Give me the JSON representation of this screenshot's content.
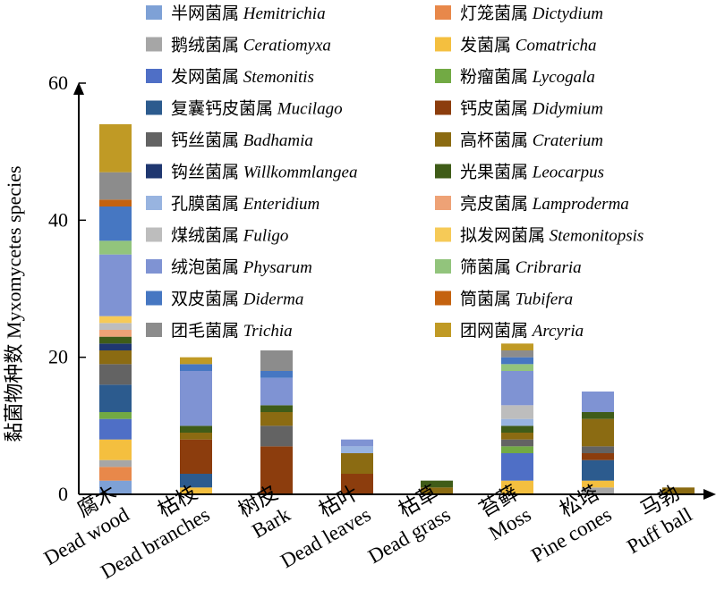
{
  "chart_data": {
    "type": "bar",
    "stacked": true,
    "ylabel": "黏菌物种数 Myxomycetes species",
    "xlabel": "",
    "ylim": [
      0,
      60
    ],
    "yticks": [
      0,
      20,
      40,
      60
    ],
    "grid": false,
    "legend_position": "top",
    "categories": [
      {
        "cn": "腐木",
        "en": "Dead wood"
      },
      {
        "cn": "枯枝",
        "en": "Dead branches"
      },
      {
        "cn": "树皮",
        "en": "Bark"
      },
      {
        "cn": "枯叶",
        "en": "Dead leaves"
      },
      {
        "cn": "枯草",
        "en": "Dead grass"
      },
      {
        "cn": "苔藓",
        "en": "Moss"
      },
      {
        "cn": "松塔",
        "en": "Pine cones"
      },
      {
        "cn": "马勃",
        "en": "Puff ball"
      }
    ],
    "series": [
      {
        "cn": "半网菌属",
        "latin": "Hemitrichia",
        "color": "#7ea1d6",
        "values": [
          2,
          0,
          0,
          0,
          0,
          0,
          0,
          0
        ]
      },
      {
        "cn": "灯笼菌属",
        "latin": "Dictydium",
        "color": "#e8884a",
        "values": [
          2,
          0,
          0,
          0,
          0,
          0,
          0,
          0
        ]
      },
      {
        "cn": "鹅绒菌属",
        "latin": "Ceratiomyxa",
        "color": "#a6a6a6",
        "values": [
          1,
          0,
          0,
          0,
          0,
          0,
          1,
          0
        ]
      },
      {
        "cn": "发菌属",
        "latin": "Comatricha",
        "color": "#f4bf3f",
        "values": [
          3,
          1,
          0,
          0,
          0,
          2,
          1,
          0
        ]
      },
      {
        "cn": "发网菌属",
        "latin": "Stemonitis",
        "color": "#4f6fc6",
        "values": [
          3,
          0,
          0,
          0,
          0,
          4,
          0,
          0
        ]
      },
      {
        "cn": "粉瘤菌属",
        "latin": "Lycogala",
        "color": "#72aa44",
        "values": [
          1,
          0,
          0,
          0,
          0,
          1,
          0,
          0
        ]
      },
      {
        "cn": "复囊钙皮菌属",
        "latin": "Mucilago",
        "color": "#2c5b8e",
        "values": [
          4,
          2,
          0,
          0,
          0,
          0,
          3,
          0
        ]
      },
      {
        "cn": "钙皮菌属",
        "latin": "Didymium",
        "color": "#8c3d0d",
        "values": [
          0,
          5,
          7,
          3,
          0,
          0,
          1,
          0
        ]
      },
      {
        "cn": "钙丝菌属",
        "latin": "Badhamia",
        "color": "#636363",
        "values": [
          3,
          0,
          3,
          0,
          0,
          1,
          1,
          0
        ]
      },
      {
        "cn": "高杯菌属",
        "latin": "Craterium",
        "color": "#8b6b12",
        "values": [
          2,
          1,
          2,
          3,
          1,
          1,
          4,
          1
        ]
      },
      {
        "cn": "钩丝菌属",
        "latin": "Willkommlangea",
        "color": "#1f3770",
        "values": [
          1,
          0,
          0,
          0,
          0,
          0,
          0,
          0
        ]
      },
      {
        "cn": "光果菌属",
        "latin": "Leocarpus",
        "color": "#3f5c18",
        "values": [
          1,
          1,
          1,
          0,
          1,
          1,
          1,
          0
        ]
      },
      {
        "cn": "孔膜菌属",
        "latin": "Enteridium",
        "color": "#98b4e0",
        "values": [
          0,
          0,
          0,
          1,
          0,
          1,
          0,
          0
        ]
      },
      {
        "cn": "亮皮菌属",
        "latin": "Lamproderma",
        "color": "#eea276",
        "values": [
          1,
          0,
          0,
          0,
          0,
          0,
          0,
          0
        ]
      },
      {
        "cn": "煤绒菌属",
        "latin": "Fuligo",
        "color": "#bdbdbd",
        "values": [
          1,
          0,
          0,
          0,
          0,
          2,
          0,
          0
        ]
      },
      {
        "cn": "拟发网菌属",
        "latin": "Stemonitopsis",
        "color": "#f6ca57",
        "values": [
          1,
          0,
          0,
          0,
          0,
          0,
          0,
          0
        ]
      },
      {
        "cn": "绒泡菌属",
        "latin": "Physarum",
        "color": "#7f93d3",
        "values": [
          9,
          8,
          4,
          1,
          0,
          5,
          3,
          0
        ]
      },
      {
        "cn": "筛菌属",
        "latin": "Cribraria",
        "color": "#92c47c",
        "values": [
          2,
          0,
          0,
          0,
          0,
          1,
          0,
          0
        ]
      },
      {
        "cn": "双皮菌属",
        "latin": "Diderma",
        "color": "#4677c2",
        "values": [
          5,
          1,
          1,
          0,
          0,
          1,
          0,
          0
        ]
      },
      {
        "cn": "筒菌属",
        "latin": "Tubifera",
        "color": "#c4620f",
        "values": [
          1,
          0,
          0,
          0,
          0,
          0,
          0,
          0
        ]
      },
      {
        "cn": "团毛菌属",
        "latin": "Trichia",
        "color": "#8c8c8c",
        "values": [
          4,
          0,
          3,
          0,
          0,
          1,
          0,
          0
        ]
      },
      {
        "cn": "团网菌属",
        "latin": "Arcyria",
        "color": "#c09a25",
        "values": [
          7,
          1,
          0,
          0,
          0,
          1,
          0,
          0
        ]
      }
    ]
  }
}
